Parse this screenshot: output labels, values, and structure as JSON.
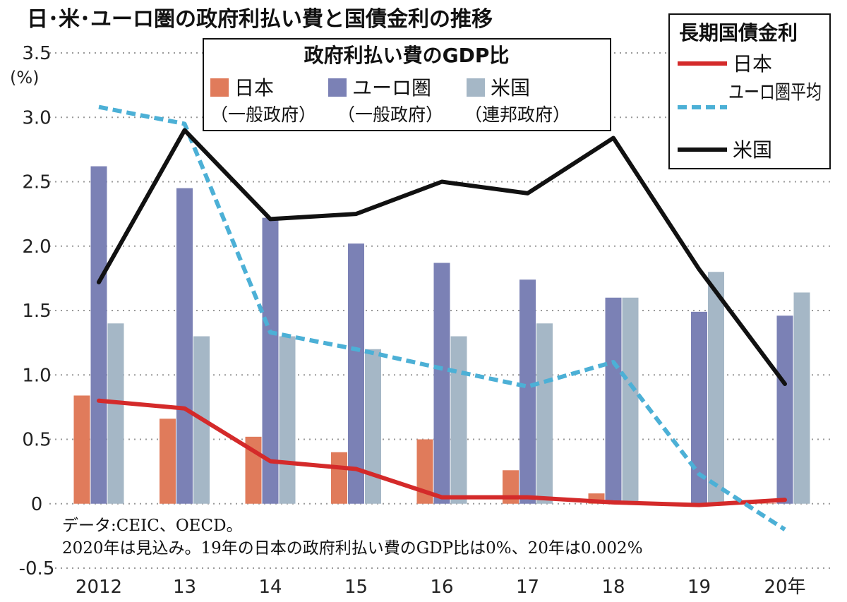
{
  "chart_data": {
    "type": "bar",
    "title": "日･米･ユーロ圏の政府利払い費と国債金利の推移",
    "ylabel": "(%)",
    "ylim": [
      -0.5,
      3.5
    ],
    "yticks": [
      "3.5",
      "3.0",
      "2.5",
      "2.0",
      "1.5",
      "1.0",
      "0.5",
      "0",
      "-0.5"
    ],
    "grid": true,
    "categories": [
      "2012",
      "13",
      "14",
      "15",
      "16",
      "17",
      "18",
      "19",
      "20年"
    ],
    "bar_legend": {
      "title": "政府利払い費のGDP比",
      "placement": "top-center",
      "items": [
        {
          "name": "日本",
          "sub": "（一般政府）"
        },
        {
          "name": "ユーロ圏",
          "sub": "（一般政府）"
        },
        {
          "name": "米国",
          "sub": "（連邦政府）"
        }
      ]
    },
    "bar_series": [
      {
        "name": "日本",
        "color": "#e07b5b",
        "values": [
          0.84,
          0.66,
          0.52,
          0.4,
          0.5,
          0.26,
          0.08,
          0,
          0.002
        ]
      },
      {
        "name": "ユーロ圏",
        "color": "#7b81b5",
        "values": [
          2.62,
          2.45,
          2.22,
          2.02,
          1.87,
          1.74,
          1.6,
          1.49,
          1.46
        ]
      },
      {
        "name": "米国",
        "color": "#a5b7c6",
        "values": [
          1.4,
          1.3,
          1.3,
          1.2,
          1.3,
          1.4,
          1.6,
          1.8,
          1.64
        ]
      }
    ],
    "line_legend": {
      "title": "長期国債金利",
      "placement": "top-right",
      "items": [
        "日本",
        "ユーロ圏平均",
        "米国"
      ]
    },
    "line_series": [
      {
        "name": "日本",
        "color": "#d42a2a",
        "style": "solid",
        "values": [
          0.8,
          0.74,
          0.33,
          0.27,
          0.05,
          0.05,
          0.01,
          -0.01,
          0.03
        ]
      },
      {
        "name": "ユーロ圏平均",
        "color": "#4cb0d6",
        "style": "dashed",
        "values": [
          3.08,
          2.95,
          1.33,
          1.2,
          1.05,
          0.91,
          1.1,
          0.23,
          -0.2
        ]
      },
      {
        "name": "米国",
        "color": "#111111",
        "style": "solid",
        "values": [
          1.72,
          2.9,
          2.21,
          2.25,
          2.5,
          2.41,
          2.84,
          1.82,
          0.93
        ]
      }
    ],
    "notes": [
      "データ:CEIC、OECD。",
      "2020年は見込み。19年の日本の政府利払い費のGDP比は0%、20年は0.002%"
    ]
  }
}
